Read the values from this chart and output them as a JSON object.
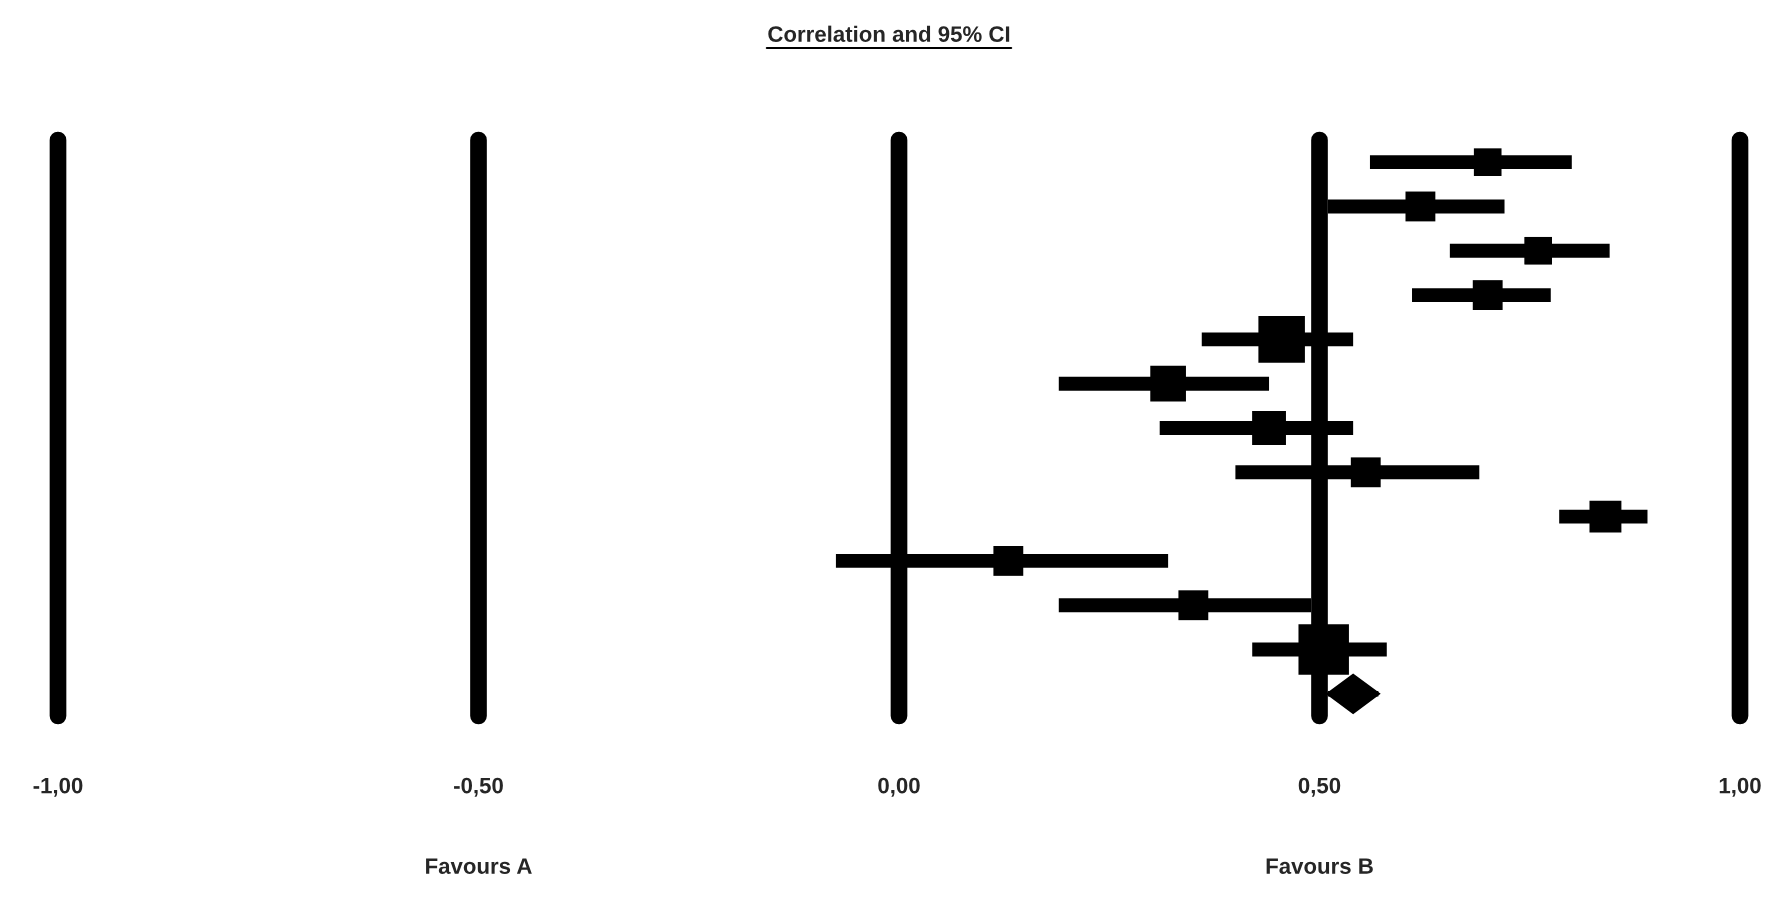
{
  "chart_data": {
    "type": "scatter",
    "orientation": "horizontal",
    "title": "Correlation and 95% CI",
    "categories": [
      null,
      null,
      null,
      null,
      null,
      null,
      null,
      null,
      null,
      null,
      null,
      null,
      null
    ],
    "series": [
      {
        "marker": "square",
        "color": "#000000",
        "values": [
          0.7,
          0.62,
          0.76,
          0.7,
          0.455,
          0.32,
          0.44,
          0.555,
          0.84,
          0.13,
          0.35,
          0.505,
          null
        ],
        "errors": [
          [
            0.56,
            0.8
          ],
          [
            0.51,
            0.72
          ],
          [
            0.655,
            0.845
          ],
          [
            0.61,
            0.775
          ],
          [
            0.36,
            0.54
          ],
          [
            0.19,
            0.44
          ],
          [
            0.31,
            0.54
          ],
          [
            0.4,
            0.69
          ],
          [
            0.785,
            0.89
          ],
          [
            -0.075,
            0.32
          ],
          [
            0.19,
            0.49
          ],
          [
            0.42,
            0.58
          ],
          null
        ],
        "sizes": [
          0.3,
          0.35,
          0.3,
          0.35,
          0.85,
          0.5,
          0.45,
          0.35,
          0.4,
          0.35,
          0.35,
          1.0,
          null
        ]
      },
      {
        "marker": "diamond",
        "color": "#000000",
        "values": [
          null,
          null,
          null,
          null,
          null,
          null,
          null,
          null,
          null,
          null,
          null,
          null,
          0.54
        ],
        "errors": [
          null,
          null,
          null,
          null,
          null,
          null,
          null,
          null,
          null,
          null,
          null,
          null,
          [
            0.51,
            0.57
          ]
        ]
      }
    ],
    "xlim": [
      -1,
      1
    ],
    "xticks": [
      {
        "value": -1,
        "label": "-1,00"
      },
      {
        "value": -0.5,
        "label": "-0,50"
      },
      {
        "value": 0,
        "label": "0,00"
      },
      {
        "value": 0.5,
        "label": "0,50"
      },
      {
        "value": 1,
        "label": "1,00"
      }
    ],
    "grid": "x",
    "tick_labels": "x",
    "annotations": [
      "Favours A",
      "Favours B"
    ]
  }
}
